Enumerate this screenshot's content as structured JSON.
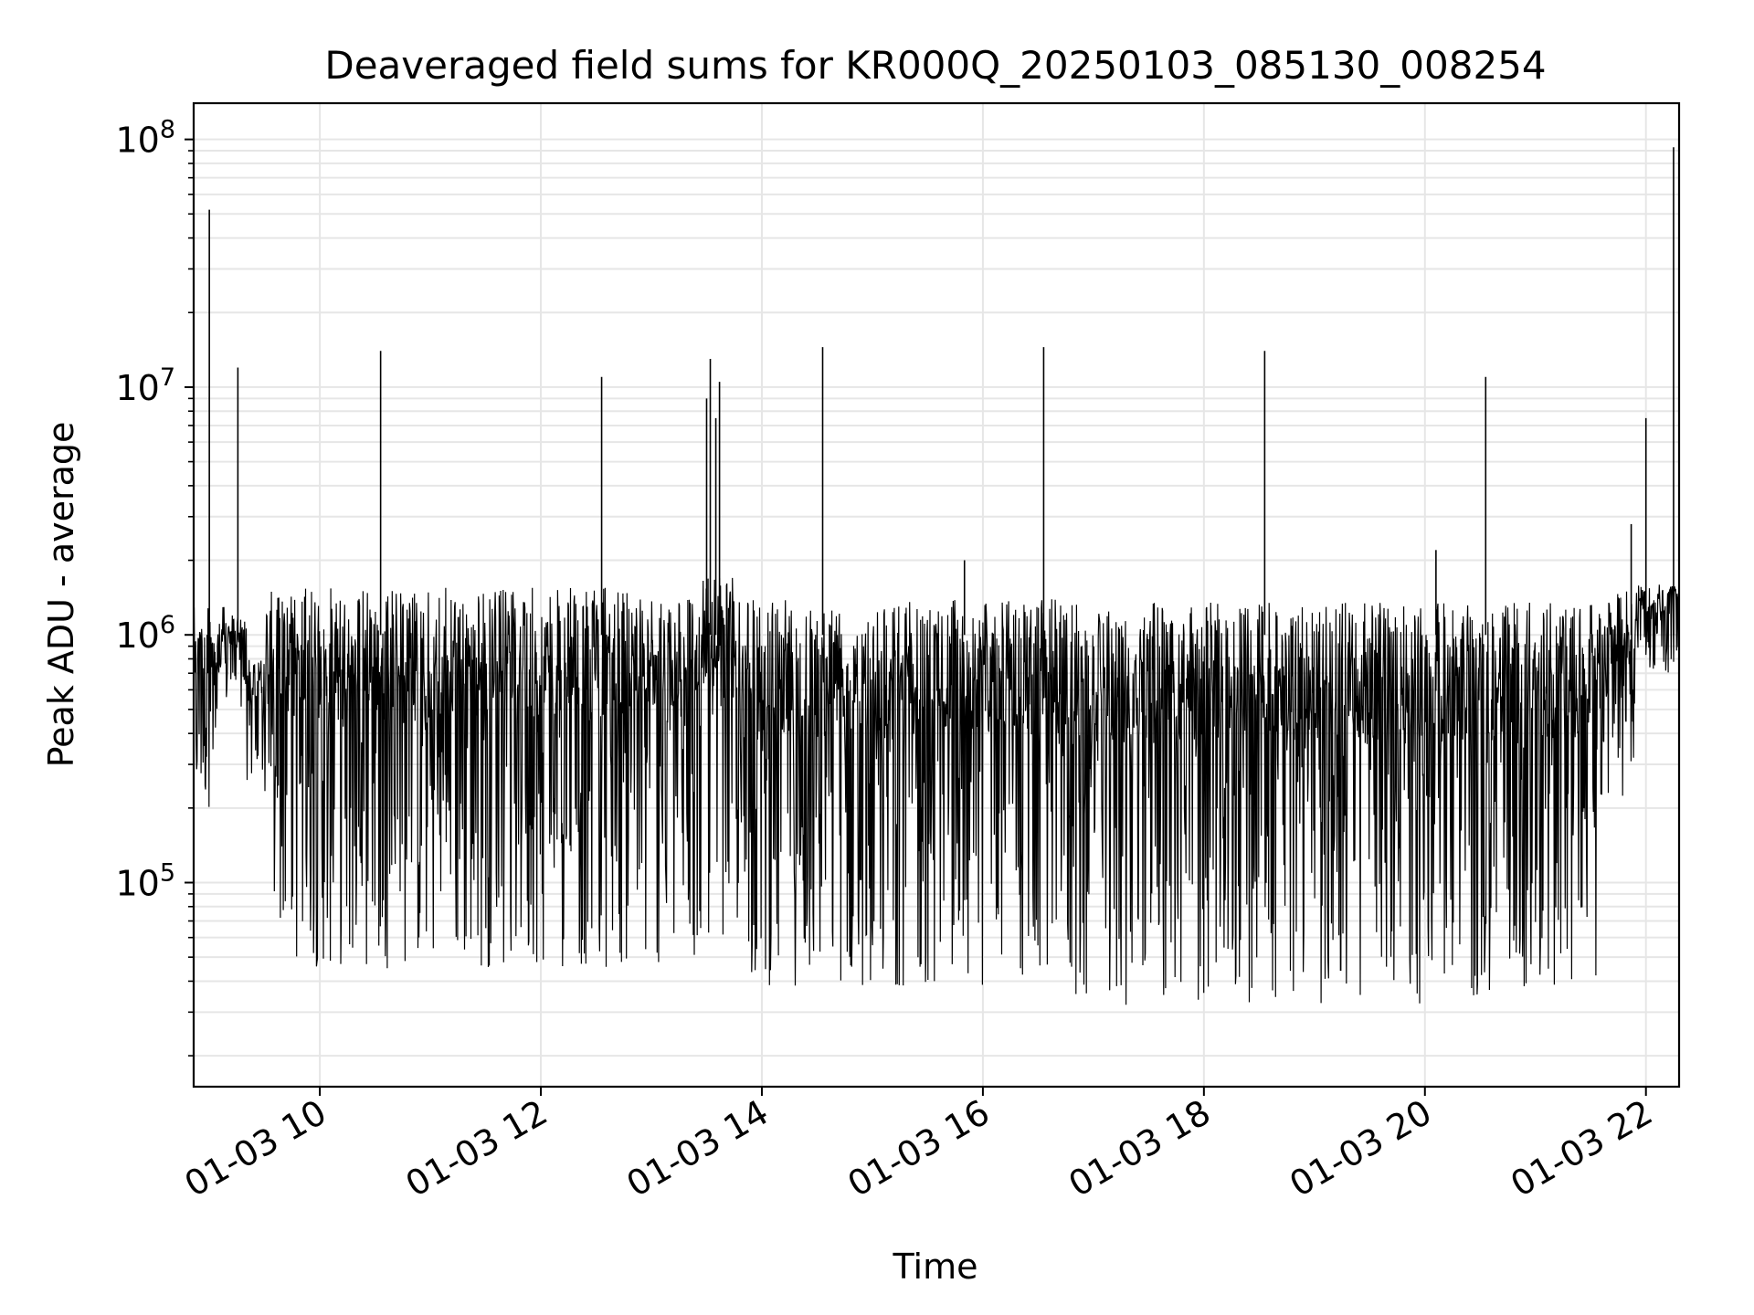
{
  "chart_data": {
    "type": "line",
    "title": "Deaveraged field sums for KR000Q_20250103_085130_008254",
    "xlabel": "Time",
    "ylabel": "Peak ADU - average",
    "yscale": "log",
    "grid": true,
    "colors": {
      "series": "#000000",
      "grid": "#e6e6e6",
      "axes": "#000000"
    },
    "xlim": [
      "2025-01-03 08:51:30",
      "2025-01-03 22:18:00"
    ],
    "ylim": [
      15000,
      140000000
    ],
    "x_ticks": [
      {
        "t": "2025-01-03 10:00",
        "label": "01-03 10"
      },
      {
        "t": "2025-01-03 12:00",
        "label": "01-03 12"
      },
      {
        "t": "2025-01-03 14:00",
        "label": "01-03 14"
      },
      {
        "t": "2025-01-03 16:00",
        "label": "01-03 16"
      },
      {
        "t": "2025-01-03 18:00",
        "label": "01-03 18"
      },
      {
        "t": "2025-01-03 20:00",
        "label": "01-03 20"
      },
      {
        "t": "2025-01-03 22:00",
        "label": "01-03 22"
      }
    ],
    "y_ticks": [
      {
        "v": 100000,
        "base": "10",
        "exp": "5"
      },
      {
        "v": 1000000,
        "base": "10",
        "exp": "6"
      },
      {
        "v": 10000000,
        "base": "10",
        "exp": "7"
      },
      {
        "v": 100000000,
        "base": "10",
        "exp": "8"
      }
    ],
    "envelope": {
      "description_only_in_script": false,
      "segments": [
        {
          "start": "2025-01-03 08:51:30",
          "end": "2025-01-03 09:08:00",
          "low": 200000,
          "high": 1300000
        },
        {
          "start": "2025-01-03 09:08:00",
          "end": "2025-01-03 09:20:00",
          "low": 500000,
          "high": 1200000
        },
        {
          "start": "2025-01-03 09:20:00",
          "end": "2025-01-03 09:30:00",
          "low": 250000,
          "high": 800000
        },
        {
          "start": "2025-01-03 09:30:00",
          "end": "2025-01-03 09:45:00",
          "low": 60000,
          "high": 1500000
        },
        {
          "start": "2025-01-03 09:45:00",
          "end": "2025-01-03 13:25:00",
          "low": 45000,
          "high": 1550000
        },
        {
          "start": "2025-01-03 13:25:00",
          "end": "2025-01-03 13:50:00",
          "low": 60000,
          "high": 1700000
        },
        {
          "start": "2025-01-03 13:50:00",
          "end": "2025-01-03 16:50:00",
          "low": 38000,
          "high": 1400000
        },
        {
          "start": "2025-01-03 16:50:00",
          "end": "2025-01-03 21:35:00",
          "low": 32000,
          "high": 1350000
        },
        {
          "start": "2025-01-03 21:35:00",
          "end": "2025-01-03 21:55:00",
          "low": 200000,
          "high": 1500000
        },
        {
          "start": "2025-01-03 21:55:00",
          "end": "2025-01-03 22:18:00",
          "low": 700000,
          "high": 1600000
        }
      ]
    },
    "spikes": [
      {
        "t": "2025-01-03 09:00:00",
        "v": 52000000
      },
      {
        "t": "2025-01-03 09:15:30",
        "v": 12000000
      },
      {
        "t": "2025-01-03 10:33:00",
        "v": 14000000
      },
      {
        "t": "2025-01-03 12:33:00",
        "v": 11000000
      },
      {
        "t": "2025-01-03 13:30:00",
        "v": 9000000
      },
      {
        "t": "2025-01-03 13:32:00",
        "v": 13000000
      },
      {
        "t": "2025-01-03 13:35:00",
        "v": 7500000
      },
      {
        "t": "2025-01-03 13:37:00",
        "v": 10500000
      },
      {
        "t": "2025-01-03 14:33:00",
        "v": 14500000
      },
      {
        "t": "2025-01-03 15:50:00",
        "v": 2000000
      },
      {
        "t": "2025-01-03 16:33:00",
        "v": 14500000
      },
      {
        "t": "2025-01-03 18:33:00",
        "v": 14000000
      },
      {
        "t": "2025-01-03 20:06:00",
        "v": 2200000
      },
      {
        "t": "2025-01-03 20:33:00",
        "v": 11000000
      },
      {
        "t": "2025-01-03 21:52:00",
        "v": 2800000
      },
      {
        "t": "2025-01-03 22:00:00",
        "v": 7500000
      },
      {
        "t": "2025-01-03 22:15:00",
        "v": 93000000
      }
    ]
  }
}
